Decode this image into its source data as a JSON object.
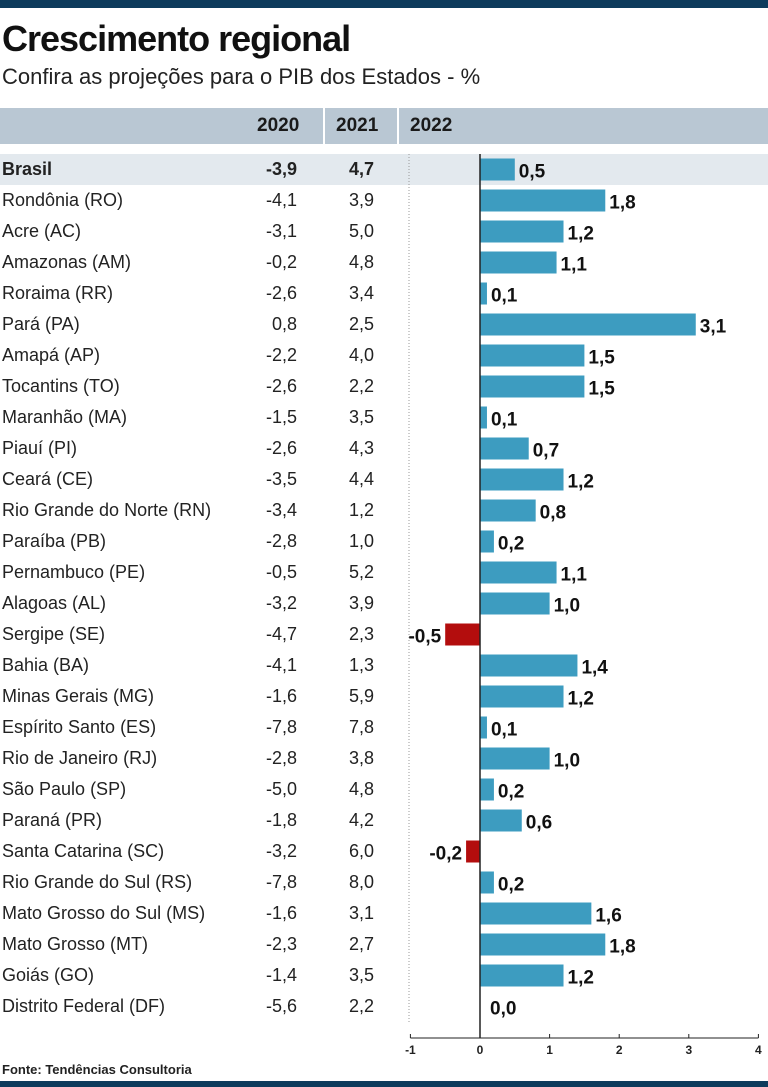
{
  "header": {
    "title": "Crescimento regional",
    "subtitle": "Confira as projeções para o PIB dos Estados - %",
    "col_2020": "2020",
    "col_2021": "2021",
    "col_2022": "2022"
  },
  "rows": [
    {
      "name": "Brasil",
      "y2020": "-3,9",
      "y2021": "4,7"
    },
    {
      "name": "Rondônia (RO)",
      "y2020": "-4,1",
      "y2021": "3,9"
    },
    {
      "name": "Acre (AC)",
      "y2020": "-3,1",
      "y2021": "5,0"
    },
    {
      "name": "Amazonas (AM)",
      "y2020": "-0,2",
      "y2021": "4,8"
    },
    {
      "name": "Roraima (RR)",
      "y2020": "-2,6",
      "y2021": "3,4"
    },
    {
      "name": "Pará (PA)",
      "y2020": "0,8",
      "y2021": "2,5"
    },
    {
      "name": "Amapá (AP)",
      "y2020": "-2,2",
      "y2021": "4,0"
    },
    {
      "name": "Tocantins (TO)",
      "y2020": "-2,6",
      "y2021": "2,2"
    },
    {
      "name": "Maranhão (MA)",
      "y2020": "-1,5",
      "y2021": "3,5"
    },
    {
      "name": "Piauí (PI)",
      "y2020": "-2,6",
      "y2021": "4,3"
    },
    {
      "name": "Ceará (CE)",
      "y2020": "-3,5",
      "y2021": "4,4"
    },
    {
      "name": "Rio Grande do Norte (RN)",
      "y2020": "-3,4",
      "y2021": "1,2"
    },
    {
      "name": "Paraíba (PB)",
      "y2020": "-2,8",
      "y2021": "1,0"
    },
    {
      "name": "Pernambuco (PE)",
      "y2020": "-0,5",
      "y2021": "5,2"
    },
    {
      "name": "Alagoas (AL)",
      "y2020": "-3,2",
      "y2021": "3,9"
    },
    {
      "name": "Sergipe (SE)",
      "y2020": "-4,7",
      "y2021": "2,3"
    },
    {
      "name": "Bahia (BA)",
      "y2020": "-4,1",
      "y2021": "1,3"
    },
    {
      "name": "Minas Gerais (MG)",
      "y2020": "-1,6",
      "y2021": "5,9"
    },
    {
      "name": "Espírito Santo (ES)",
      "y2020": "-7,8",
      "y2021": "7,8"
    },
    {
      "name": "Rio de Janeiro (RJ)",
      "y2020": "-2,8",
      "y2021": "3,8"
    },
    {
      "name": "São Paulo (SP)",
      "y2020": "-5,0",
      "y2021": "4,8"
    },
    {
      "name": "Paraná (PR)",
      "y2020": "-1,8",
      "y2021": "4,2"
    },
    {
      "name": "Santa Catarina (SC)",
      "y2020": "-3,2",
      "y2021": "6,0"
    },
    {
      "name": "Rio Grande do Sul (RS)",
      "y2020": "-7,8",
      "y2021": "8,0"
    },
    {
      "name": "Mato Grosso do Sul (MS)",
      "y2020": "-1,6",
      "y2021": "3,1"
    },
    {
      "name": "Mato Grosso (MT)",
      "y2020": "-2,3",
      "y2021": "2,7"
    },
    {
      "name": "Goiás (GO)",
      "y2020": "-1,4",
      "y2021": "3,5"
    },
    {
      "name": "Distrito Federal (DF)",
      "y2020": "-5,6",
      "y2021": "2,2"
    }
  ],
  "chart_data": {
    "type": "bar",
    "orientation": "horizontal",
    "title": "Crescimento regional",
    "subtitle": "Confira as projeções para o PIB dos Estados - %",
    "series_name": "2022",
    "categories": [
      "Brasil",
      "Rondônia (RO)",
      "Acre (AC)",
      "Amazonas (AM)",
      "Roraima (RR)",
      "Pará (PA)",
      "Amapá (AP)",
      "Tocantins (TO)",
      "Maranhão (MA)",
      "Piauí (PI)",
      "Ceará (CE)",
      "Rio Grande do Norte (RN)",
      "Paraíba (PB)",
      "Pernambuco (PE)",
      "Alagoas (AL)",
      "Sergipe (SE)",
      "Bahia (BA)",
      "Minas Gerais (MG)",
      "Espírito Santo (ES)",
      "Rio de Janeiro (RJ)",
      "São Paulo (SP)",
      "Paraná (PR)",
      "Santa Catarina (SC)",
      "Rio Grande do Sul (RS)",
      "Mato Grosso do Sul (MS)",
      "Mato Grosso (MT)",
      "Goiás (GO)",
      "Distrito Federal (DF)"
    ],
    "values": [
      0.5,
      1.8,
      1.2,
      1.1,
      0.1,
      3.1,
      1.5,
      1.5,
      0.1,
      0.7,
      1.2,
      0.8,
      0.2,
      1.1,
      1.0,
      -0.5,
      1.4,
      1.2,
      0.1,
      1.0,
      0.2,
      0.6,
      -0.2,
      0.2,
      1.6,
      1.8,
      1.2,
      0.0
    ],
    "labels": [
      "0,5",
      "1,8",
      "1,2",
      "1,1",
      "0,1",
      "3,1",
      "1,5",
      "1,5",
      "0,1",
      "0,7",
      "1,2",
      "0,8",
      "0,2",
      "1,1",
      "1,0",
      "-0,5",
      "1,4",
      "1,2",
      "0,1",
      "1,0",
      "0,2",
      "0,6",
      "-0,2",
      "0,2",
      "1,6",
      "1,8",
      "1,2",
      "0,0"
    ],
    "xlim": [
      -1,
      4
    ],
    "xticks": [
      -1,
      0,
      1,
      2,
      3,
      4
    ],
    "xtick_labels": [
      "-1",
      "0",
      "1",
      "2",
      "3",
      "4"
    ],
    "grid": false,
    "colors": {
      "positive": "#3d9cc0",
      "negative": "#b30d0d",
      "axis": "#222222",
      "separator": "#999999"
    }
  },
  "footer": {
    "source": "Fonte: Tendências Consultoria"
  }
}
